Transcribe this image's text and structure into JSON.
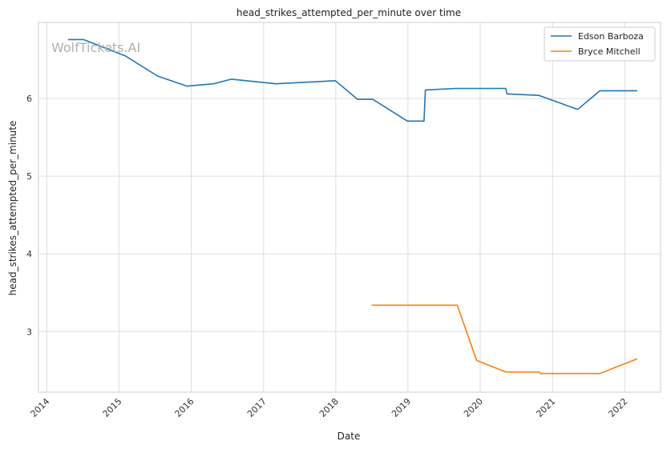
{
  "chart_data": {
    "type": "line",
    "title": "head_strikes_attempted_per_minute over time",
    "xlabel": "Date",
    "ylabel": "head_strikes_attempted_per_minute",
    "watermark": "WolfTickets.AI",
    "xlim": [
      "2013-11-20",
      "2022-07-01"
    ],
    "ylim": [
      2.22,
      6.98
    ],
    "x_ticks": [
      "2014",
      "2015",
      "2016",
      "2017",
      "2018",
      "2019",
      "2020",
      "2021",
      "2022"
    ],
    "y_ticks": [
      3,
      4,
      5,
      6
    ],
    "grid": true,
    "legend_position": "top-right",
    "series": [
      {
        "name": "Edson Barboza",
        "color": "#1f77b4",
        "points": [
          [
            "2014-04-19",
            6.76
          ],
          [
            "2014-07-05",
            6.76
          ],
          [
            "2015-02-01",
            6.55
          ],
          [
            "2015-07-15",
            6.29
          ],
          [
            "2015-12-10",
            6.16
          ],
          [
            "2016-04-23",
            6.19
          ],
          [
            "2016-07-22",
            6.25
          ],
          [
            "2017-03-04",
            6.19
          ],
          [
            "2017-12-30",
            6.23
          ],
          [
            "2018-04-21",
            5.99
          ],
          [
            "2018-07-07",
            5.99
          ],
          [
            "2018-12-29",
            5.71
          ],
          [
            "2019-03-23",
            5.71
          ],
          [
            "2019-03-30",
            6.11
          ],
          [
            "2019-08-31",
            6.13
          ],
          [
            "2020-05-09",
            6.13
          ],
          [
            "2020-05-16",
            6.06
          ],
          [
            "2020-10-24",
            6.04
          ],
          [
            "2021-05-08",
            5.86
          ],
          [
            "2021-08-28",
            6.1
          ],
          [
            "2022-03-05",
            6.1
          ]
        ]
      },
      {
        "name": "Bryce Mitchell",
        "color": "#ff7f0e",
        "points": [
          [
            "2018-07-01",
            3.34
          ],
          [
            "2019-09-07",
            3.34
          ],
          [
            "2019-12-14",
            2.63
          ],
          [
            "2020-05-09",
            2.48
          ],
          [
            "2020-10-24",
            2.48
          ],
          [
            "2020-10-31",
            2.46
          ],
          [
            "2021-08-28",
            2.46
          ],
          [
            "2022-03-05",
            2.65
          ]
        ]
      }
    ]
  }
}
